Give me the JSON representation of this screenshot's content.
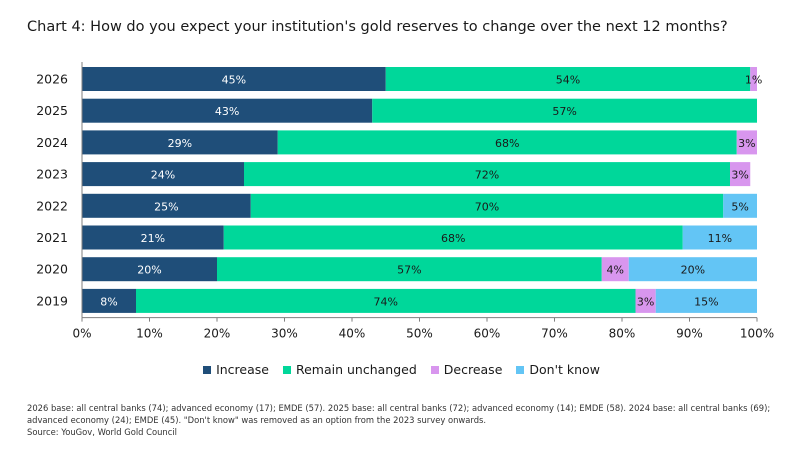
{
  "title": "Chart 4: How do you expect your institution's gold reserves to change over the next 12 months?",
  "chart_data": {
    "type": "bar",
    "orientation": "horizontal",
    "stacked": true,
    "categories": [
      "2026",
      "2025",
      "2024",
      "2023",
      "2022",
      "2021",
      "2020",
      "2019"
    ],
    "series": [
      {
        "name": "Increase",
        "color": "#1f4e79",
        "values": [
          45,
          43,
          29,
          24,
          25,
          21,
          20,
          8
        ]
      },
      {
        "name": "Remain unchanged",
        "color": "#00d79a",
        "values": [
          54,
          57,
          68,
          72,
          70,
          68,
          57,
          74
        ]
      },
      {
        "name": "Decrease",
        "color": "#d896ee",
        "values": [
          1,
          0,
          3,
          3,
          0,
          0,
          4,
          3
        ]
      },
      {
        "name": "Don't know",
        "color": "#63c5f5",
        "values": [
          0,
          0,
          0,
          0,
          5,
          11,
          20,
          15
        ]
      }
    ],
    "data_labels": [
      [
        "45%",
        "54%",
        "1%",
        ""
      ],
      [
        "43%",
        "57%",
        "",
        ""
      ],
      [
        "29%",
        "68%",
        "3%",
        ""
      ],
      [
        "24%",
        "72%",
        "3%",
        ""
      ],
      [
        "25%",
        "70%",
        "",
        "5%"
      ],
      [
        "21%",
        "68%",
        "",
        "11%"
      ],
      [
        "20%",
        "57%",
        "4%",
        "20%"
      ],
      [
        "8%",
        "74%",
        "3%",
        "15%"
      ]
    ],
    "xlim": [
      0,
      100
    ],
    "x_ticks": [
      "0%",
      "10%",
      "20%",
      "30%",
      "40%",
      "50%",
      "60%",
      "70%",
      "80%",
      "90%",
      "100%"
    ],
    "grid": false,
    "legend_position": "bottom"
  },
  "notes": {
    "line1": "2026 base: all central banks (74); advanced economy (17); EMDE (57). 2025 base: all central banks (72); advanced economy (14); EMDE (58). 2024 base: all central banks (69);",
    "line2": "advanced economy (24); EMDE (45). \"Don't know\" was removed as an option from the 2023 survey onwards.",
    "source": "Source: YouGov, World Gold Council"
  }
}
